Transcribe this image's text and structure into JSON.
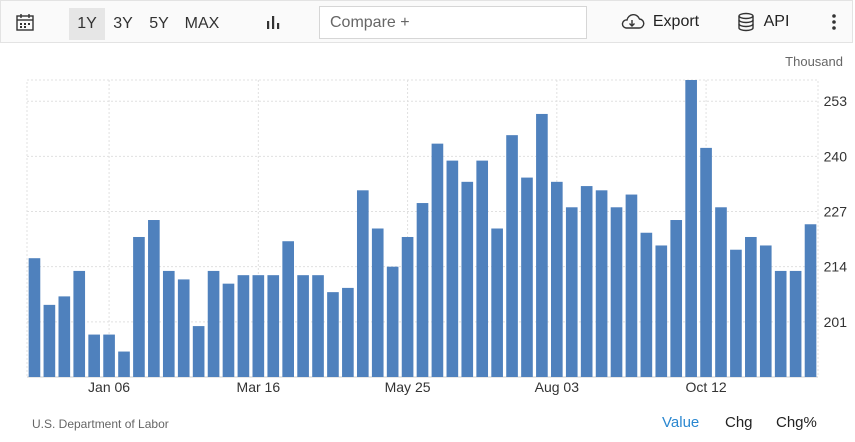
{
  "toolbar": {
    "calendar_icon": "calendar-icon",
    "ranges": [
      "1Y",
      "3Y",
      "5Y",
      "MAX"
    ],
    "active_range": "1Y",
    "chart_type_icon": "bar-chart-icon",
    "compare_placeholder": "Compare +",
    "export_label": "Export",
    "export_icon": "cloud-download-icon",
    "api_label": "API",
    "api_icon": "database-icon",
    "more_icon": "vertical-ellipsis-icon"
  },
  "footer": {
    "source": "U.S. Department of Labor",
    "tabs": [
      "Value",
      "Chg",
      "Chg%"
    ],
    "active_tab": "Value"
  },
  "colors": {
    "bar": "#4f81bd",
    "active_tab": "#2a87d0",
    "grid": "#e0e0e0"
  },
  "chart_data": {
    "type": "bar",
    "unit_label": "Thousand",
    "ylim": [
      188,
      258
    ],
    "yticks": [
      201,
      214,
      227,
      240,
      253
    ],
    "x_tick_labels": [
      {
        "index": 5,
        "label": "Jan 06"
      },
      {
        "index": 15,
        "label": "Mar 16"
      },
      {
        "index": 25,
        "label": "May 25"
      },
      {
        "index": 35,
        "label": "Aug 03"
      },
      {
        "index": 45,
        "label": "Oct 12"
      }
    ],
    "values": [
      216,
      205,
      207,
      213,
      198,
      198,
      194,
      221,
      225,
      213,
      211,
      200,
      213,
      210,
      212,
      212,
      212,
      220,
      212,
      212,
      208,
      209,
      232,
      223,
      214,
      221,
      229,
      243,
      239,
      234,
      239,
      223,
      245,
      235,
      250,
      234,
      228,
      233,
      232,
      228,
      231,
      222,
      219,
      225,
      260,
      242,
      228,
      218,
      221,
      219,
      213,
      213,
      224
    ],
    "grid": true
  }
}
